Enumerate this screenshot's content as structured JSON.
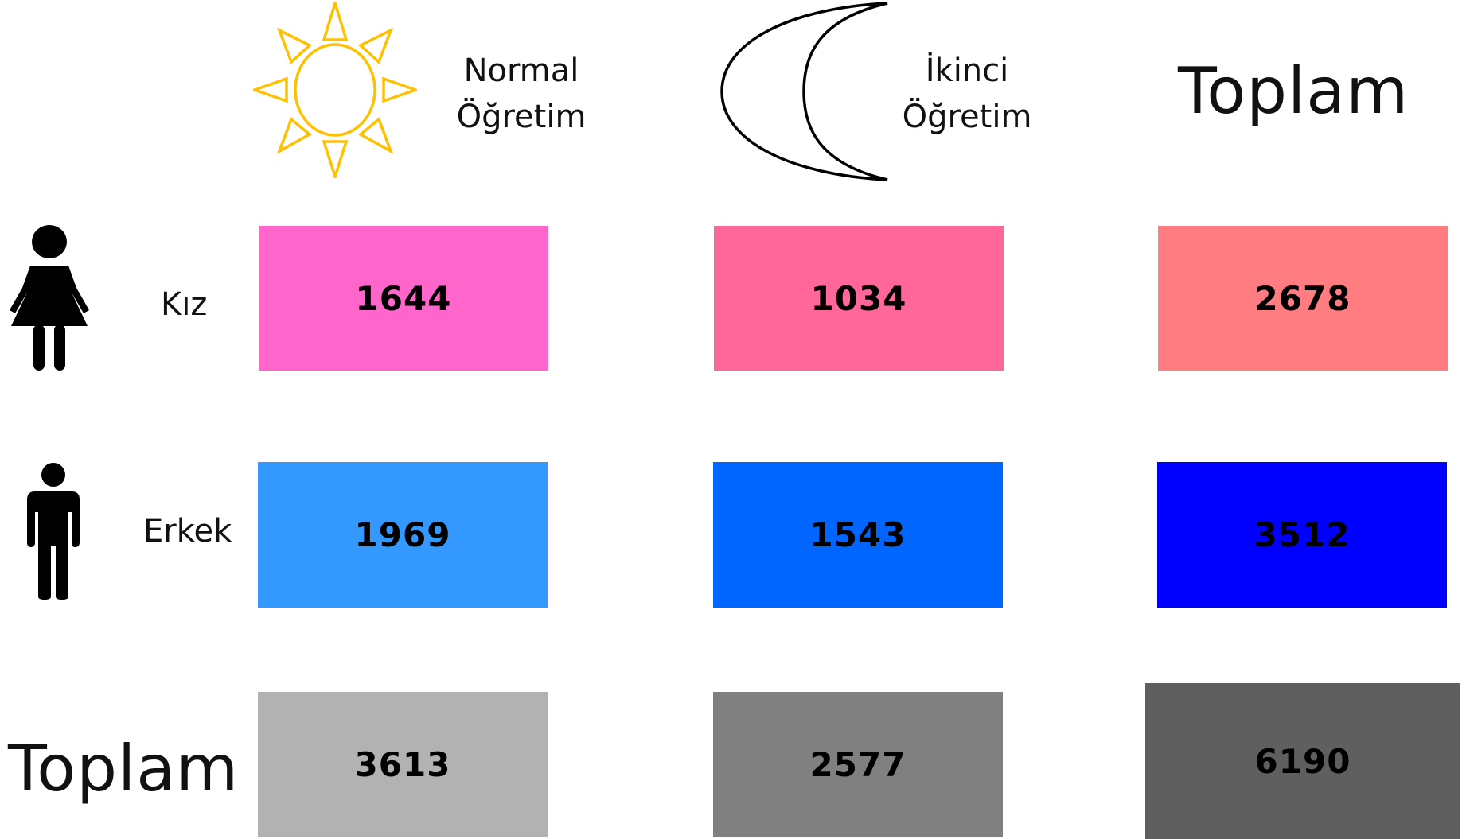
{
  "columns": {
    "normal": {
      "line1": "Normal",
      "line2": "Öğretim",
      "icon": "sun-icon",
      "icon_color": "#FFC000"
    },
    "ikinci": {
      "line1": "İkinci",
      "line2": "Öğretim",
      "icon": "crescent-moon-icon",
      "icon_color": "#000000"
    },
    "toplam": {
      "label": "Toplam"
    }
  },
  "rows": {
    "kiz": {
      "label": "Kız",
      "icon": "female-person-icon"
    },
    "erkek": {
      "label": "Erkek",
      "icon": "male-person-icon"
    },
    "toplam": {
      "label": "Toplam"
    }
  },
  "cells": {
    "kiz_normal": {
      "value": "1644",
      "color": "#FF66CC"
    },
    "kiz_ikinci": {
      "value": "1034",
      "color": "#FF6699"
    },
    "kiz_toplam": {
      "value": "2678",
      "color": "#FF7C80"
    },
    "erkek_normal": {
      "value": "1969",
      "color": "#3399FF"
    },
    "erkek_ikinci": {
      "value": "1543",
      "color": "#0066FF"
    },
    "erkek_toplam": {
      "value": "3512",
      "color": "#0000FF"
    },
    "toplam_normal": {
      "value": "3613",
      "color": "#B2B2B2"
    },
    "toplam_ikinci": {
      "value": "2577",
      "color": "#808080"
    },
    "toplam_toplam": {
      "value": "6190",
      "color": "#5F5F5F"
    }
  }
}
